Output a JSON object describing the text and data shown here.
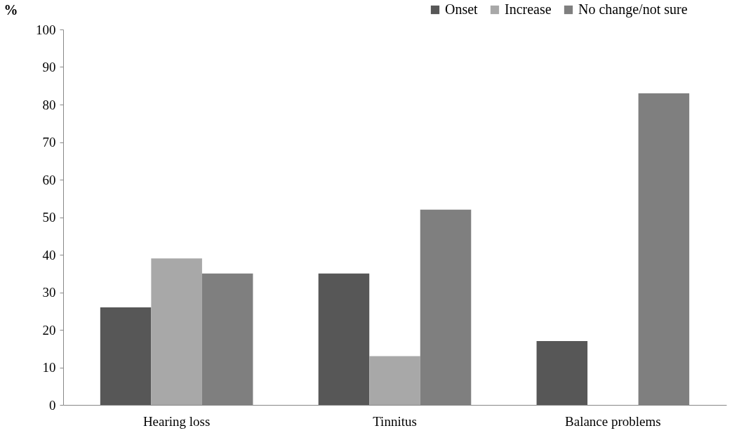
{
  "chart_data": {
    "type": "bar",
    "ylabel": "%",
    "categories": [
      "Hearing loss",
      "Tinnitus",
      "Balance problems"
    ],
    "series": [
      {
        "name": "Onset",
        "color": "#575757",
        "values": [
          26,
          35,
          17
        ]
      },
      {
        "name": "Increase",
        "color": "#a8a8a8",
        "values": [
          39,
          13,
          0
        ]
      },
      {
        "name": "No change/not sure",
        "color": "#7f7f7f",
        "values": [
          35,
          52,
          83
        ]
      }
    ],
    "ylim": [
      0,
      100
    ],
    "yticks": [
      0,
      10,
      20,
      30,
      40,
      50,
      60,
      70,
      80,
      90,
      100
    ],
    "grid": false,
    "legend": "top right"
  }
}
